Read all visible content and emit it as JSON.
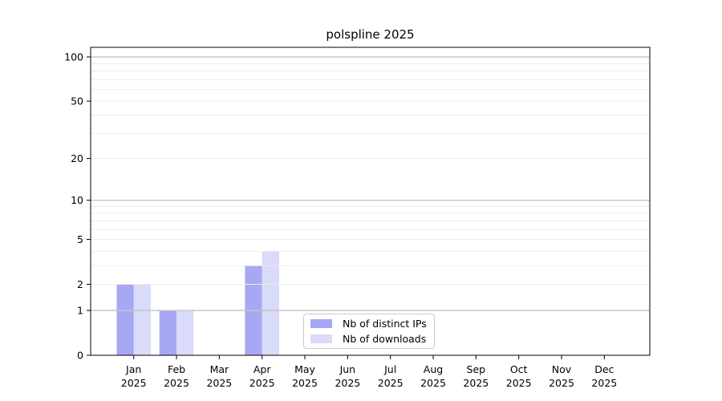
{
  "figure": {
    "title": "polspline 2025"
  },
  "chart_data": {
    "type": "bar",
    "title": "polspline 2025",
    "categories": [
      "Jan",
      "Feb",
      "Mar",
      "Apr",
      "May",
      "Jun",
      "Jul",
      "Aug",
      "Sep",
      "Oct",
      "Nov",
      "Dec"
    ],
    "xtick_year_line": "2025",
    "series": [
      {
        "name": "Nb of distinct IPs",
        "color": "#a7a7f3",
        "values": [
          2,
          1,
          0,
          3,
          0,
          0,
          0,
          0,
          0,
          0,
          0,
          0
        ]
      },
      {
        "name": "Nb of downloads",
        "color": "#dadaf9",
        "values": [
          2,
          1,
          0,
          4,
          0,
          0,
          0,
          0,
          0,
          0,
          0,
          0
        ]
      }
    ],
    "y_axis": {
      "scale": "log1p",
      "lim": [
        0,
        100
      ],
      "ticks": [
        0,
        1,
        2,
        5,
        10,
        20,
        50,
        100
      ],
      "minor_grid_values": [
        2,
        3,
        4,
        5,
        6,
        7,
        8,
        9,
        20,
        30,
        40,
        50,
        60,
        70,
        80,
        90
      ],
      "major_grid_values": [
        1,
        10,
        100
      ]
    },
    "legend": {
      "position": "bottom-center-inside",
      "entries": [
        "Nb of distinct IPs",
        "Nb of downloads"
      ]
    },
    "colors": {
      "grid_minor": "#ececec",
      "grid_major": "#c6c6c6",
      "axis": "#000000",
      "legend_border": "#cccccc",
      "background": "#ffffff",
      "text": "#000000"
    }
  }
}
